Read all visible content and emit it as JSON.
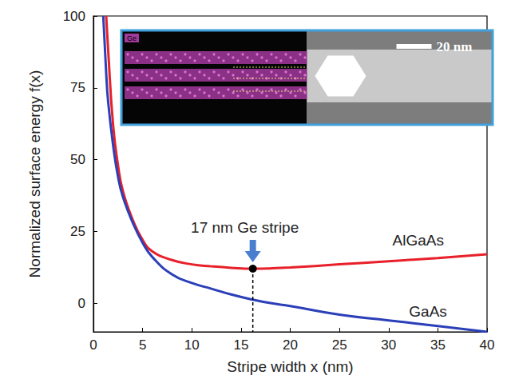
{
  "chart_data": {
    "type": "line",
    "x_label": "Stripe width x (nm)",
    "y_label": "Normalized surface energy f(x)",
    "x": [
      1,
      1.3,
      1.5,
      2,
      2.5,
      3,
      4,
      5,
      6,
      8,
      10,
      12,
      14,
      16.2,
      18,
      20,
      25,
      30,
      35,
      40
    ],
    "series": [
      {
        "name": "AlGaAs",
        "color": "#e8202a",
        "values": [
          null,
          100,
          88,
          62,
          48,
          39,
          29,
          22,
          18,
          15,
          13.5,
          12.8,
          12.3,
          12,
          12.1,
          12.4,
          13.5,
          14.6,
          15.7,
          17
        ]
      },
      {
        "name": "GaAs",
        "color": "#2b3fb8",
        "values": [
          100,
          80,
          70,
          55,
          44,
          37,
          28,
          21,
          16,
          10,
          7,
          5,
          3,
          1.2,
          0,
          -1,
          -4,
          -6,
          -8,
          -10
        ]
      }
    ],
    "xlim": [
      0,
      40
    ],
    "xticks": [
      0,
      5,
      10,
      15,
      20,
      25,
      30,
      35,
      40
    ],
    "ylim": [
      -10,
      100
    ],
    "yticks": [
      0,
      25,
      50,
      75,
      100
    ],
    "grid": false,
    "series_labels": [
      {
        "text": "AlGaAs",
        "x": 33,
        "y": 22
      },
      {
        "text": "GaAs",
        "x": 34,
        "y": -3
      }
    ],
    "annotations": [
      {
        "text": "17 nm Ge stripe",
        "x": 16.2,
        "y": 12
      }
    ],
    "inset": {
      "channel": "Ge",
      "scale_bar": "20 nm"
    }
  }
}
